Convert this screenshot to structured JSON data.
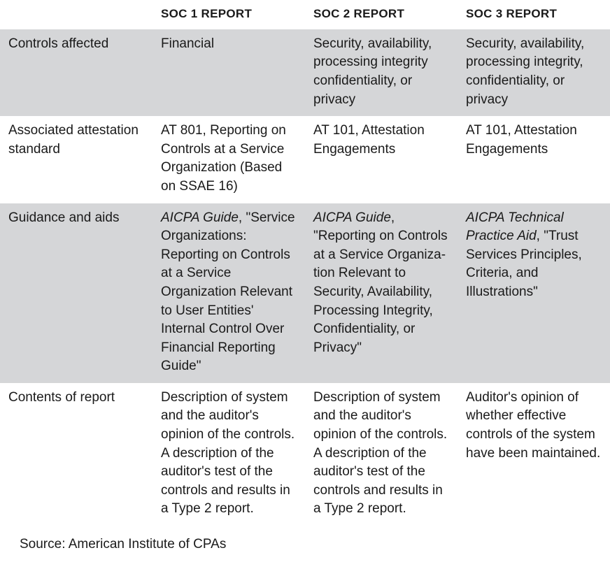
{
  "colors": {
    "shaded_bg": "#d5d6d8",
    "plain_bg": "#ffffff",
    "text": "#1a1a1a"
  },
  "headers": {
    "blank": "",
    "col1": "SOC 1 REPORT",
    "col2": "SOC 2 REPORT",
    "col3": "SOC 3 REPORT"
  },
  "rows": {
    "r0": {
      "label": "Controls affected",
      "c1": "Financial",
      "c2": "Security, availability, processing integrity confidentiality, or privacy",
      "c3": "Security, availability, processing integrity, confidentiality, or privacy"
    },
    "r1": {
      "label": "Associated attes­tation standard",
      "c1": "AT 801, Reporting on Controls at a Service Organization (Based on SSAE 16)",
      "c2": "AT 101, Attestation Engagements",
      "c3": "AT 101, Attestation Engagements"
    },
    "r2": {
      "label": "Guidance and aids",
      "c1_ital": "AICPA Guide",
      "c1_rest": ", \"Service Organiza­tions: Reporting on Controls at a Service Organization Rel­evant to User Enti­ties' Internal Control Over Financial Reporting Guide\"",
      "c2_ital": "AICPA Guide",
      "c2_rest": ", \"Reporting on Controls at a Service Organiza­tion Relevant to Security, Availability, Processing Integrity, Confidentiality, or Privacy\"",
      "c3_ital": "AICPA Technical Practice Aid",
      "c3_rest": ", \"Trust Services Principles, Criteria, and Illustrations\""
    },
    "r3": {
      "label": "Contents of report",
      "c1": "Description of system and the auditor's opinion of the controls. A description of the auditor's test of the controls and results in a Type 2 report.",
      "c2": "Description of system and the auditor's opinion of the controls. A description of the auditor's test of the controls and results in a Type 2 report.",
      "c3": "Auditor's opinion of whether effective controls of the system have been maintained."
    }
  },
  "source": "Source: American Institute of CPAs"
}
